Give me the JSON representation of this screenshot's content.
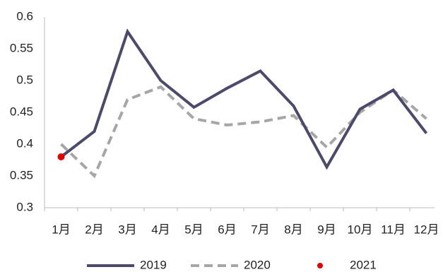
{
  "chart_data": {
    "type": "line",
    "categories": [
      "1月",
      "2月",
      "3月",
      "4月",
      "5月",
      "6月",
      "7月",
      "8月",
      "9月",
      "10月",
      "11月",
      "12月"
    ],
    "series": [
      {
        "name": "2019",
        "color": "#4b4a6b",
        "style": "solid",
        "values": [
          0.38,
          0.42,
          0.577,
          0.5,
          0.458,
          0.488,
          0.515,
          0.46,
          0.364,
          0.455,
          0.485,
          0.417
        ]
      },
      {
        "name": "2020",
        "color": "#a6a6a6",
        "style": "dashed",
        "values": [
          0.4,
          0.35,
          0.47,
          0.49,
          0.44,
          0.43,
          0.435,
          0.445,
          0.395,
          0.45,
          0.485,
          0.44
        ]
      },
      {
        "name": "2021",
        "color": "#e00000",
        "style": "marker",
        "values": [
          0.38,
          null,
          null,
          null,
          null,
          null,
          null,
          null,
          null,
          null,
          null,
          null
        ]
      }
    ],
    "ylim": [
      0.3,
      0.6
    ],
    "yticks": [
      0.3,
      0.35,
      0.4,
      0.45,
      0.5,
      0.55,
      0.6
    ],
    "grid": false,
    "legend": "bottom"
  }
}
